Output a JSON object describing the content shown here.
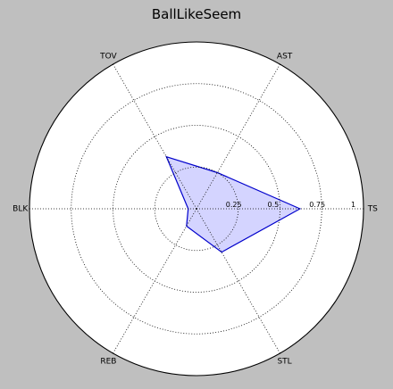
{
  "chart_data": {
    "type": "radar",
    "title": "BallLikeSeem",
    "axes": [
      "TS",
      "AST",
      "TOV",
      "BLK",
      "REB",
      "STL"
    ],
    "rticks": [
      "0.25",
      "0.5",
      "0.75",
      "1"
    ],
    "rlim": [
      0,
      1
    ],
    "grid": true,
    "series": [
      {
        "values": [
          0.62,
          0.25,
          0.36,
          0.05,
          0.12,
          0.3
        ],
        "color": "#0000cc",
        "fill": "#ccccff"
      }
    ]
  }
}
